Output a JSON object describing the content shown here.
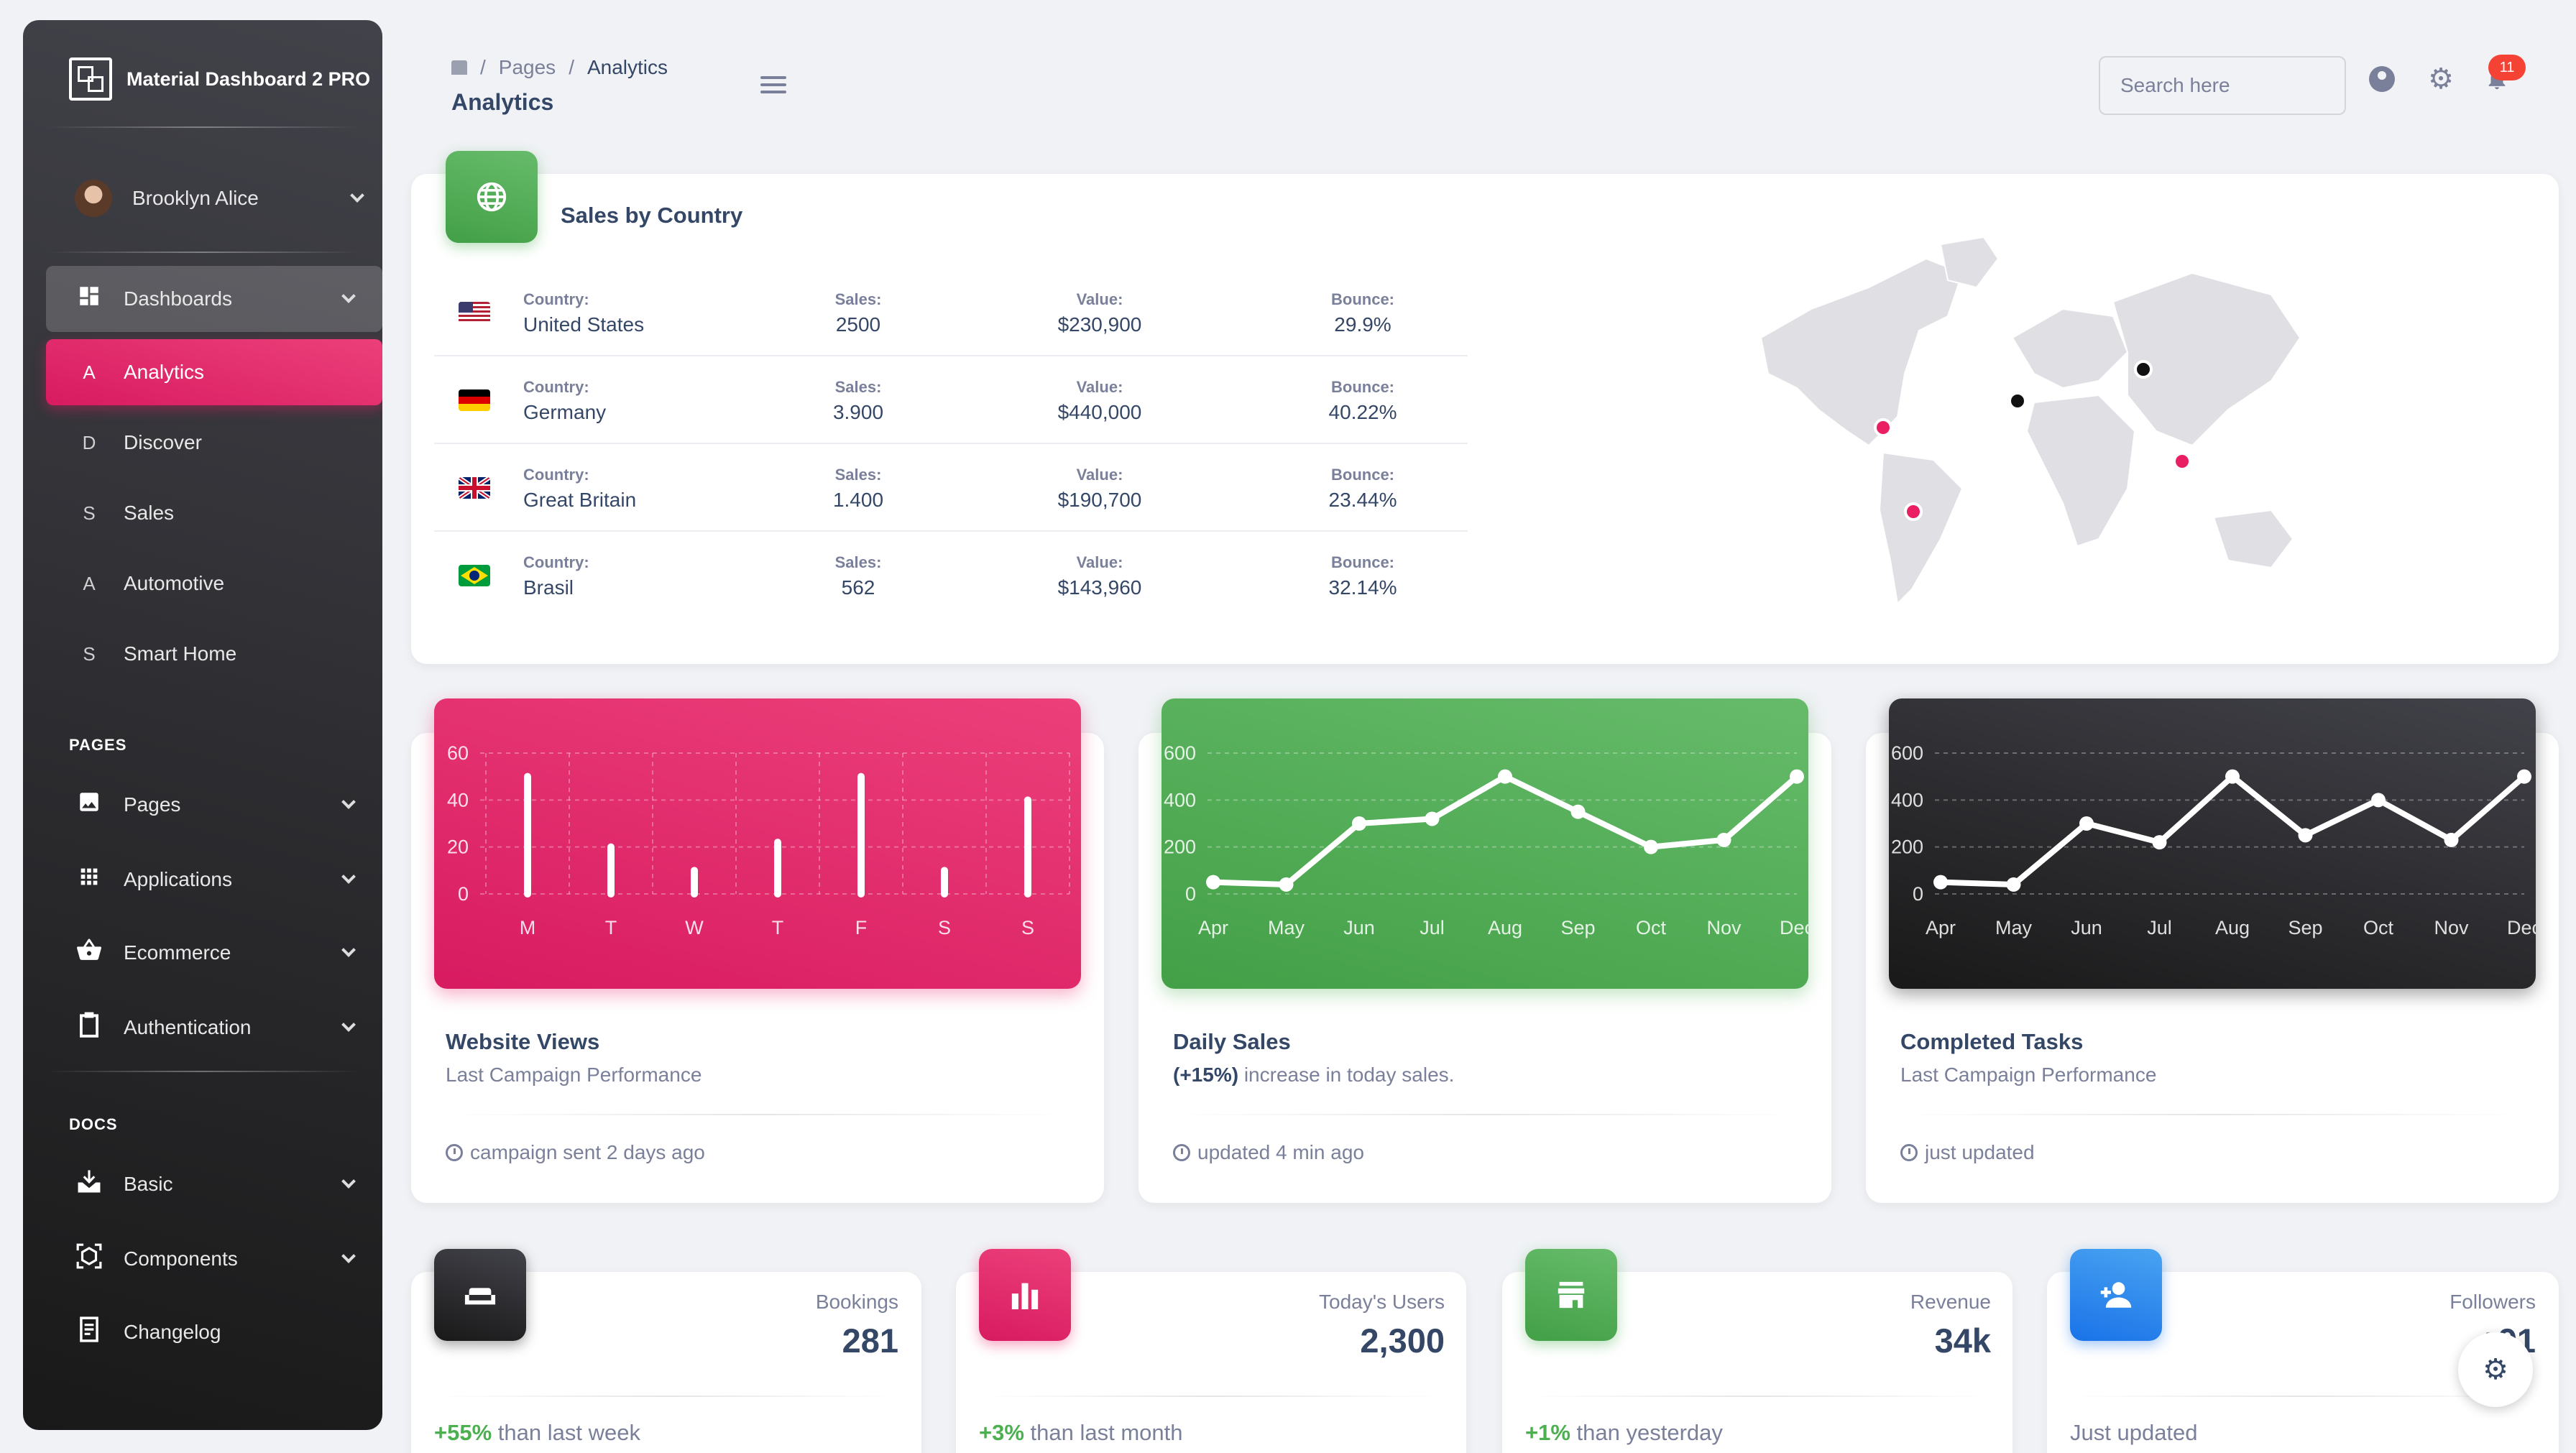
{
  "brand": {
    "title": "Material Dashboard 2 PRO"
  },
  "user": {
    "name": "Brooklyn Alice"
  },
  "sidebar": {
    "dashboards_label": "Dashboards",
    "sub_items": [
      {
        "letter": "A",
        "label": "Analytics"
      },
      {
        "letter": "D",
        "label": "Discover"
      },
      {
        "letter": "S",
        "label": "Sales"
      },
      {
        "letter": "A",
        "label": "Automotive"
      },
      {
        "letter": "S",
        "label": "Smart Home"
      }
    ],
    "pages_section": "PAGES",
    "pages_items": [
      {
        "label": "Pages"
      },
      {
        "label": "Applications"
      },
      {
        "label": "Ecommerce"
      },
      {
        "label": "Authentication"
      }
    ],
    "docs_section": "DOCS",
    "docs_items": [
      {
        "label": "Basic"
      },
      {
        "label": "Components"
      },
      {
        "label": "Changelog"
      }
    ]
  },
  "header": {
    "breadcrumb_pages": "Pages",
    "breadcrumb_sep": "/",
    "breadcrumb_current": "Analytics",
    "page_title": "Analytics",
    "search_placeholder": "Search here",
    "notification_count": "11"
  },
  "sales_by_country": {
    "title": "Sales by Country",
    "keys": {
      "country": "Country:",
      "sales": "Sales:",
      "value": "Value:",
      "bounce": "Bounce:"
    },
    "rows": [
      {
        "country": "United States",
        "sales": "2500",
        "value": "$230,900",
        "bounce": "29.9%"
      },
      {
        "country": "Germany",
        "sales": "3.900",
        "value": "$440,000",
        "bounce": "40.22%"
      },
      {
        "country": "Great Britain",
        "sales": "1.400",
        "value": "$190,700",
        "bounce": "23.44%"
      },
      {
        "country": "Brasil",
        "sales": "562",
        "value": "$143,960",
        "bounce": "32.14%"
      }
    ]
  },
  "chart_data": [
    {
      "type": "bar",
      "title": "Website Views",
      "subtitle": "Last Campaign Performance",
      "footer": "campaign sent 2 days ago",
      "categories": [
        "M",
        "T",
        "W",
        "T",
        "F",
        "S",
        "S"
      ],
      "values": [
        50,
        20,
        10,
        22,
        50,
        10,
        40
      ],
      "ylim": [
        0,
        60
      ],
      "yticks": [
        "60",
        "40",
        "20",
        "0"
      ]
    },
    {
      "type": "line",
      "title": "Daily Sales",
      "subtitle_bold": "(+15%)",
      "subtitle_rest": " increase in today sales.",
      "footer": "updated 4 min ago",
      "categories": [
        "Apr",
        "May",
        "Jun",
        "Jul",
        "Aug",
        "Sep",
        "Oct",
        "Nov",
        "Dec"
      ],
      "values": [
        50,
        40,
        300,
        320,
        500,
        350,
        200,
        230,
        500
      ],
      "ylim": [
        0,
        600
      ],
      "yticks": [
        "600",
        "400",
        "200",
        "0"
      ]
    },
    {
      "type": "line",
      "title": "Completed Tasks",
      "subtitle": "Last Campaign Performance",
      "footer": "just updated",
      "categories": [
        "Apr",
        "May",
        "Jun",
        "Jul",
        "Aug",
        "Sep",
        "Oct",
        "Nov",
        "Dec"
      ],
      "values": [
        50,
        40,
        300,
        220,
        500,
        250,
        400,
        230,
        500
      ],
      "ylim": [
        0,
        600
      ],
      "yticks": [
        "600",
        "400",
        "200",
        "0"
      ]
    }
  ],
  "stats": [
    {
      "label": "Bookings",
      "value": "281",
      "change": "+55%",
      "rest": " than last week"
    },
    {
      "label": "Today's Users",
      "value": "2,300",
      "change": "+3%",
      "rest": " than last month"
    },
    {
      "label": "Revenue",
      "value": "34k",
      "change": "+1%",
      "rest": " than yesterday"
    },
    {
      "label": "Followers",
      "value": "+91",
      "change": "",
      "rest": "Just updated"
    }
  ],
  "colors": {
    "pink": "#e91e63",
    "green": "#4caf50",
    "dark": "#191919",
    "blue": "#1a73e8"
  }
}
